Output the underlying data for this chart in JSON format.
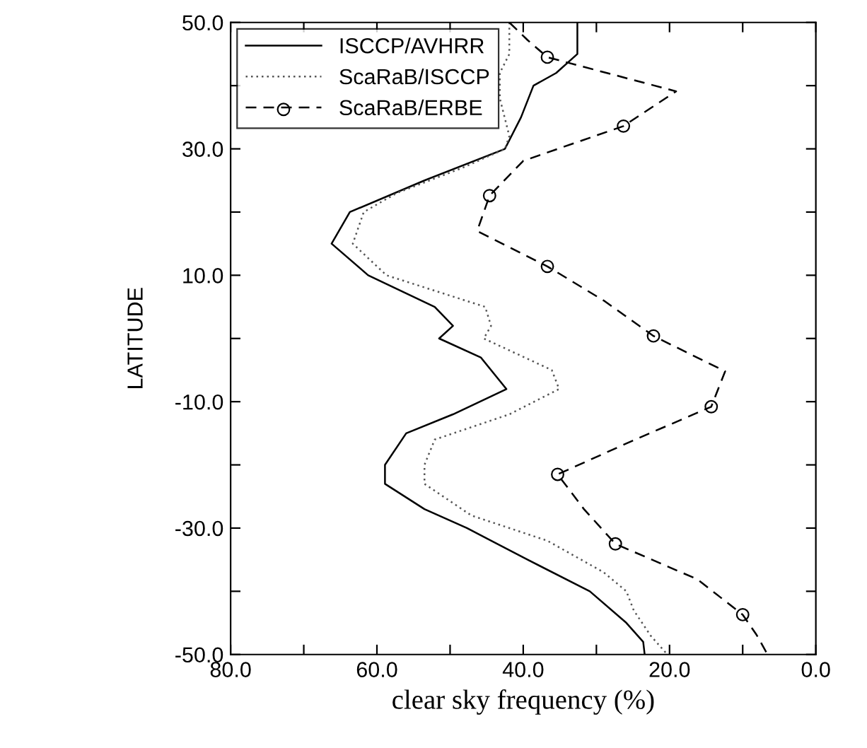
{
  "chart_data": {
    "type": "line",
    "xlabel": "clear sky frequency (%)",
    "ylabel": "LATITUDE",
    "xlim": [
      80,
      0
    ],
    "ylim": [
      -50,
      50
    ],
    "xticks": [
      {
        "value": 80,
        "label": "80.0"
      },
      {
        "value": 70,
        "label": null
      },
      {
        "value": 60,
        "label": "60.0"
      },
      {
        "value": 50,
        "label": null
      },
      {
        "value": 40,
        "label": "40.0"
      },
      {
        "value": 30,
        "label": null
      },
      {
        "value": 20,
        "label": "20.0"
      },
      {
        "value": 10,
        "label": null
      },
      {
        "value": 0,
        "label": "0.0"
      }
    ],
    "yticks": [
      {
        "value": -50,
        "label": "-50.0"
      },
      {
        "value": -40,
        "label": null
      },
      {
        "value": -30,
        "label": "-30.0"
      },
      {
        "value": -20,
        "label": null
      },
      {
        "value": -10,
        "label": "-10.0"
      },
      {
        "value": 0,
        "label": null
      },
      {
        "value": 10,
        "label": "10.0"
      },
      {
        "value": 20,
        "label": null
      },
      {
        "value": 30,
        "label": "30.0"
      },
      {
        "value": 40,
        "label": null
      },
      {
        "value": 50,
        "label": "50.0"
      }
    ],
    "grid": false,
    "legend": "top left",
    "series": [
      {
        "name": "ISCCP/AVHRR",
        "color": "#000000",
        "line_style": "solid",
        "marker": "none",
        "x": [
          32.6,
          32.6,
          35.5,
          38.6,
          40.3,
          42.5,
          53.5,
          63.7,
          66.2,
          61.2,
          52.1,
          49.6,
          51.5,
          45.8,
          42.3,
          49.6,
          56.0,
          58.9,
          58.9,
          53.5,
          47.7,
          39.4,
          30.9,
          25.9,
          23.6,
          23.4
        ],
        "values": [
          50,
          45,
          42,
          40,
          35,
          30,
          25,
          20,
          15,
          10,
          5,
          2,
          0,
          -3,
          -8,
          -12,
          -15,
          -20,
          -23,
          -27,
          -30,
          -35,
          -40,
          -45,
          -48,
          -50
        ]
      },
      {
        "name": "ScaRaB/ISCCP",
        "color": "#555555",
        "line_style": "dotted",
        "marker": "none",
        "x": [
          41.9,
          41.9,
          43.2,
          43.2,
          41.9,
          42.5,
          48.3,
          57.3,
          61.8,
          63.3,
          58.7,
          45.2,
          44.4,
          45.4,
          36.1,
          35.1,
          41.9,
          52.1,
          53.5,
          53.5,
          47.1,
          36.7,
          29.0,
          25.9,
          24.9,
          22.6,
          20.3
        ],
        "values": [
          50,
          45,
          42,
          38,
          32,
          30,
          27,
          23,
          20,
          15,
          10,
          5,
          2,
          0,
          -5,
          -8,
          -12,
          -16,
          -20,
          -23,
          -28,
          -32,
          -37,
          -40,
          -43,
          -47,
          -50
        ]
      },
      {
        "name": "ScaRaB/ERBE",
        "color": "#000000",
        "line_style": "dashed",
        "marker": "none",
        "x": [
          41.9,
          39.4,
          36.7,
          19.1,
          26.3,
          40.0,
          44.6,
          46.3,
          36.7,
          29.0,
          22.2,
          12.4,
          14.3,
          25.1,
          35.3,
          31.7,
          27.4,
          16.2,
          10.0,
          8.1,
          6.6
        ],
        "values": [
          50,
          47.2,
          44.5,
          39.1,
          33.6,
          28.1,
          22.6,
          17,
          11.4,
          6,
          0.4,
          -5.2,
          -10.8,
          -16.2,
          -21.5,
          -27,
          -32.5,
          -38.1,
          -43.7,
          -46.9,
          -50
        ]
      },
      {
        "type": "scatter",
        "color": "#000000",
        "marker": "circle",
        "x": [
          36.7,
          26.3,
          44.6,
          36.7,
          22.2,
          14.3,
          35.3,
          27.4,
          10.0
        ],
        "values": [
          44.5,
          33.6,
          22.6,
          11.4,
          0.4,
          -10.8,
          -21.5,
          -32.5,
          -43.7
        ]
      }
    ]
  }
}
